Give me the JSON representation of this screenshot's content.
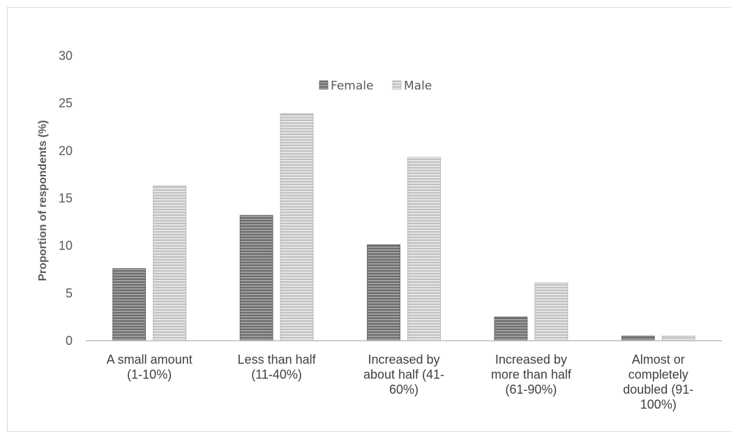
{
  "chart_data": {
    "type": "bar",
    "categories": [
      [
        "A small amount",
        "(1-10%)"
      ],
      [
        "Less than half",
        "(11-40%)"
      ],
      [
        "Increased by",
        "about half (41-",
        "60%)"
      ],
      [
        "Increased by",
        "more than half",
        "(61-90%)"
      ],
      [
        "Almost or",
        "completely",
        "doubled (91-",
        "100%)"
      ]
    ],
    "series": [
      {
        "name": "Female",
        "values": [
          7.6,
          13.2,
          10.1,
          2.5,
          0.5
        ],
        "color": "#7f7f7f"
      },
      {
        "name": "Male",
        "values": [
          16.3,
          23.9,
          19.3,
          6.1,
          0.5
        ],
        "color": "#c8c8c8"
      }
    ],
    "ylabel": "Proportion of respondents (%)",
    "xlabel": "",
    "ylim": [
      0,
      30
    ],
    "yticks": [
      "0",
      "5",
      "10",
      "15",
      "20",
      "25",
      "30"
    ],
    "grid": false,
    "legend_position": "top-center"
  }
}
